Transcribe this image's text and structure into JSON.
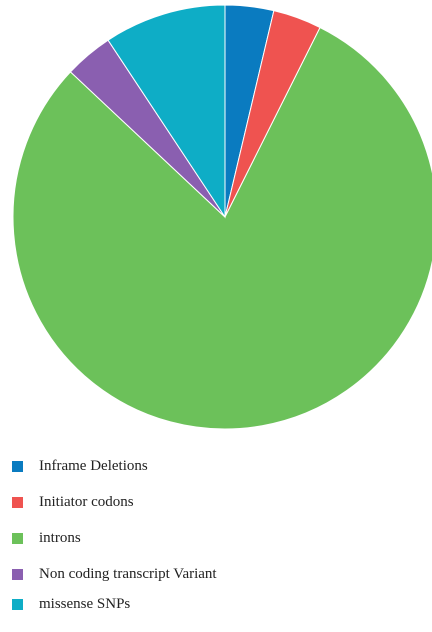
{
  "chart_data": {
    "type": "pie",
    "title": "",
    "start_angle_deg": 0,
    "direction": "clockwise",
    "slices": [
      {
        "label": "Inframe Deletions",
        "value": 3.7,
        "color": "#0a7bc0"
      },
      {
        "label": "Initiator codons",
        "value": 3.7,
        "color": "#ef5350"
      },
      {
        "label": "introns",
        "value": 79.6,
        "color": "#6cc15a"
      },
      {
        "label": "Non coding transcript Variant",
        "value": 3.7,
        "color": "#8a5fb0"
      },
      {
        "label": "missense SNPs",
        "value": 9.3,
        "color": "#0eadc6"
      }
    ],
    "legend_position": "bottom-left"
  }
}
